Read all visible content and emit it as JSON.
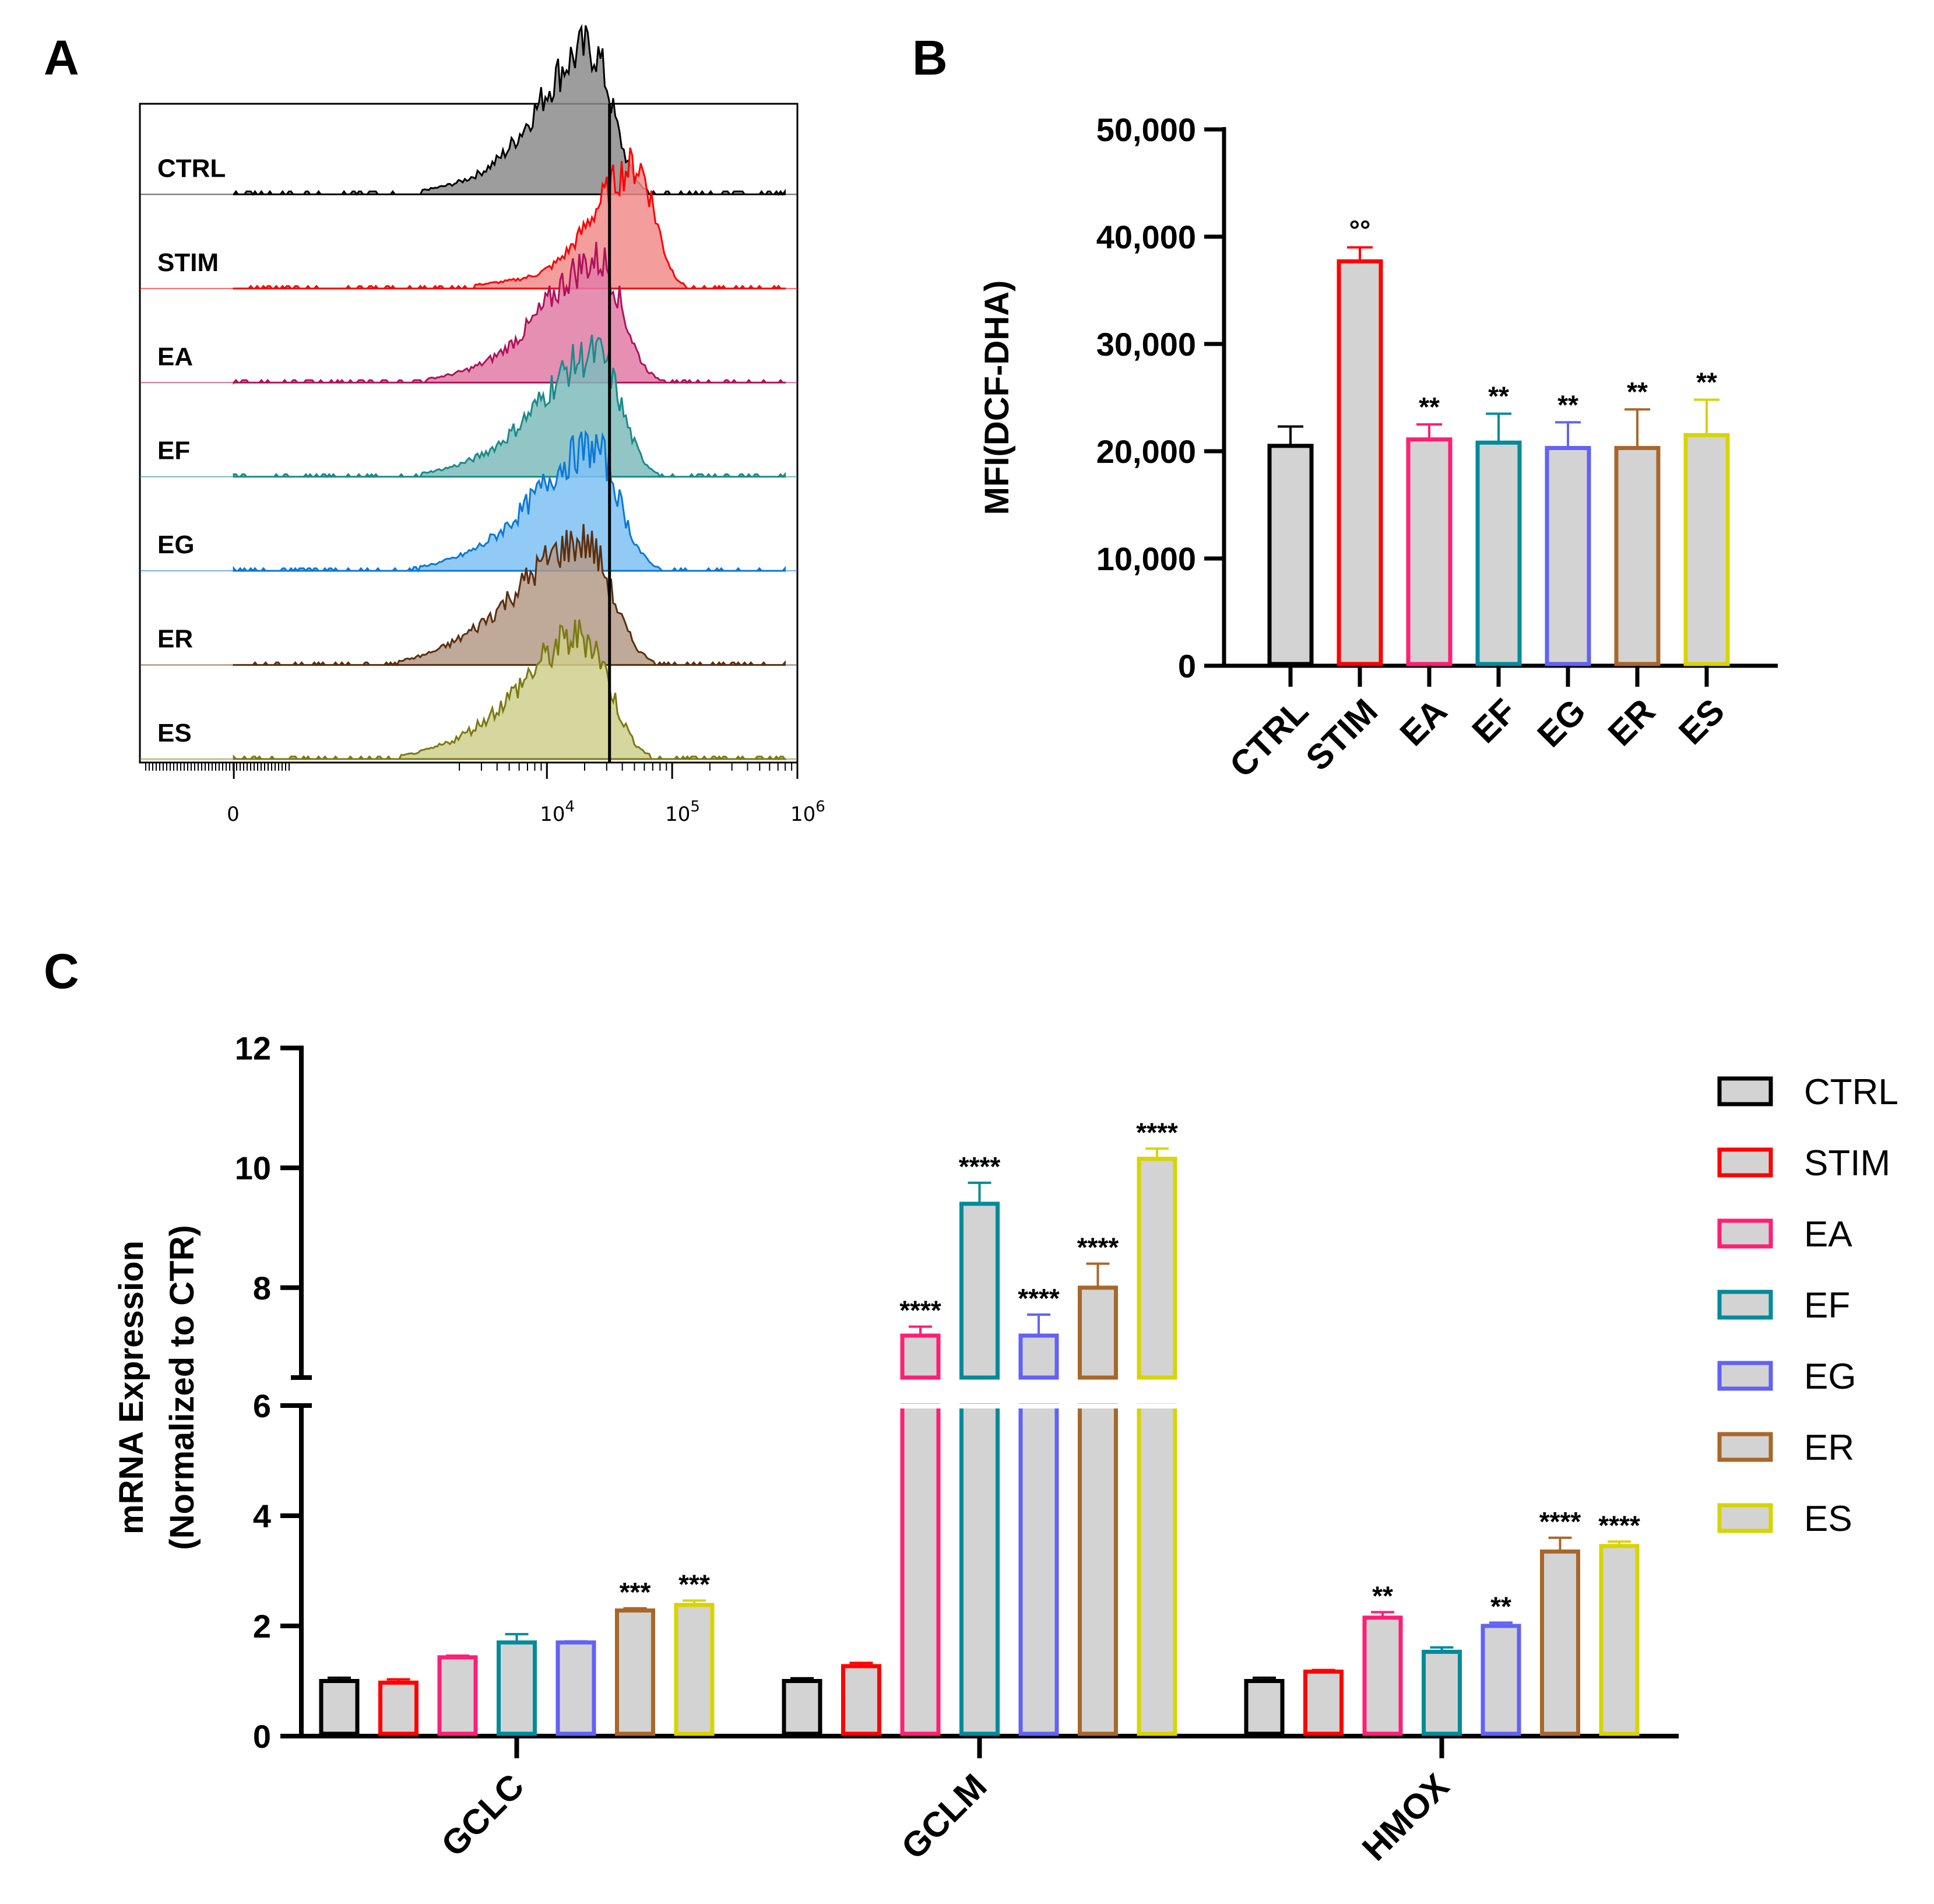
{
  "chart_data": [
    {
      "panel": "A",
      "type": "histogram",
      "title": "",
      "tracks": [
        {
          "label": "CTRL",
          "color": "#000000",
          "fill": "#8c8c8c",
          "peak_log": 4.35,
          "width": 0.32,
          "tail": 0.45
        },
        {
          "label": "STIM",
          "color": "#ff0000",
          "fill": "#f28c8c",
          "peak_log": 4.72,
          "width": 0.27,
          "tail": 0.45
        },
        {
          "label": "EA",
          "color": "#b0125a",
          "fill": "#e07ca6",
          "peak_log": 4.42,
          "width": 0.34,
          "tail": 0.5
        },
        {
          "label": "EF",
          "color": "#1a8a8a",
          "fill": "#7fbcbc",
          "peak_log": 4.4,
          "width": 0.35,
          "tail": 0.52
        },
        {
          "label": "EG",
          "color": "#0a78d8",
          "fill": "#7fc1f5",
          "peak_log": 4.38,
          "width": 0.36,
          "tail": 0.55
        },
        {
          "label": "ER",
          "color": "#5a2e0e",
          "fill": "#b49a86",
          "peak_log": 4.3,
          "width": 0.4,
          "tail": 0.6
        },
        {
          "label": "ES",
          "color": "#7a7a10",
          "fill": "#cfcf8e",
          "peak_log": 4.3,
          "width": 0.38,
          "tail": 0.55
        }
      ],
      "x_ticks": [
        {
          "base": "0",
          "exp": "",
          "log": 1.5
        },
        {
          "base": "10",
          "exp": "4",
          "log": 4
        },
        {
          "base": "10",
          "exp": "5",
          "log": 5
        },
        {
          "base": "10",
          "exp": "6",
          "log": 6
        }
      ],
      "gate_log": 4.5
    },
    {
      "panel": "B",
      "type": "bar",
      "categories": [
        "CTRL",
        "STIM",
        "EA",
        "EF",
        "EG",
        "ER",
        "ES"
      ],
      "values": [
        20500,
        37700,
        21100,
        20800,
        20300,
        20300,
        21500
      ],
      "errors": [
        1800,
        1300,
        1400,
        2700,
        2400,
        3600,
        3300
      ],
      "colors": [
        "#000000",
        "#ff0000",
        "#ff1f75",
        "#008b9a",
        "#6262f5",
        "#a8672a",
        "#d8d400"
      ],
      "annotations": [
        "",
        "°°",
        "**",
        "**",
        "**",
        "**",
        "**"
      ],
      "ylabel": "MFI(DCF-DHA)",
      "ylim": [
        0,
        50000
      ],
      "yticks": [
        0,
        10000,
        20000,
        30000,
        40000,
        50000
      ],
      "ytick_labels": [
        "0",
        "10,000",
        "20,000",
        "30,000",
        "40,000",
        "50,000"
      ]
    },
    {
      "panel": "C",
      "type": "bar",
      "categories": [
        "GCLC",
        "GCLM",
        "HMOX"
      ],
      "ylabel_line1": "mRNA Expression",
      "ylabel_line2": "(Normalized to CTR)",
      "y_break": [
        6,
        6.5
      ],
      "ylim": [
        0,
        12
      ],
      "yticks": [
        0,
        2,
        4,
        6,
        8,
        10,
        12
      ],
      "ytick_labels": [
        "0",
        "2",
        "4",
        "6",
        "8",
        "10",
        "12"
      ],
      "legend_position": "right",
      "series": [
        {
          "name": "CTRL",
          "color": "#000000",
          "values": [
            1.0,
            1.0,
            1.0
          ],
          "errors": [
            0.06,
            0.05,
            0.06
          ],
          "annotations": [
            "",
            "",
            ""
          ]
        },
        {
          "name": "STIM",
          "color": "#ff0000",
          "values": [
            0.97,
            1.27,
            1.17
          ],
          "errors": [
            0.06,
            0.06,
            0.03
          ],
          "annotations": [
            "",
            "",
            ""
          ]
        },
        {
          "name": "EA",
          "color": "#ff1f75",
          "values": [
            1.43,
            7.2,
            2.15
          ],
          "errors": [
            0.03,
            0.15,
            0.1
          ],
          "annotations": [
            "",
            "****",
            "**"
          ]
        },
        {
          "name": "EF",
          "color": "#008b9a",
          "values": [
            1.7,
            9.4,
            1.53
          ],
          "errors": [
            0.15,
            0.35,
            0.08
          ],
          "annotations": [
            "",
            "****",
            ""
          ]
        },
        {
          "name": "EG",
          "color": "#6262f5",
          "values": [
            1.7,
            7.2,
            2.0
          ],
          "errors": [
            0.02,
            0.35,
            0.06
          ],
          "annotations": [
            "",
            "****",
            "**"
          ]
        },
        {
          "name": "ER",
          "color": "#a8672a",
          "values": [
            2.28,
            8.0,
            3.35
          ],
          "errors": [
            0.04,
            0.4,
            0.25
          ],
          "annotations": [
            "***",
            "****",
            "****"
          ]
        },
        {
          "name": "ES",
          "color": "#d8d400",
          "values": [
            2.38,
            10.15,
            3.45
          ],
          "errors": [
            0.08,
            0.17,
            0.08
          ],
          "annotations": [
            "***",
            "****",
            "****"
          ]
        }
      ]
    }
  ],
  "panel_labels": {
    "a": "A",
    "b": "B",
    "c": "C"
  }
}
